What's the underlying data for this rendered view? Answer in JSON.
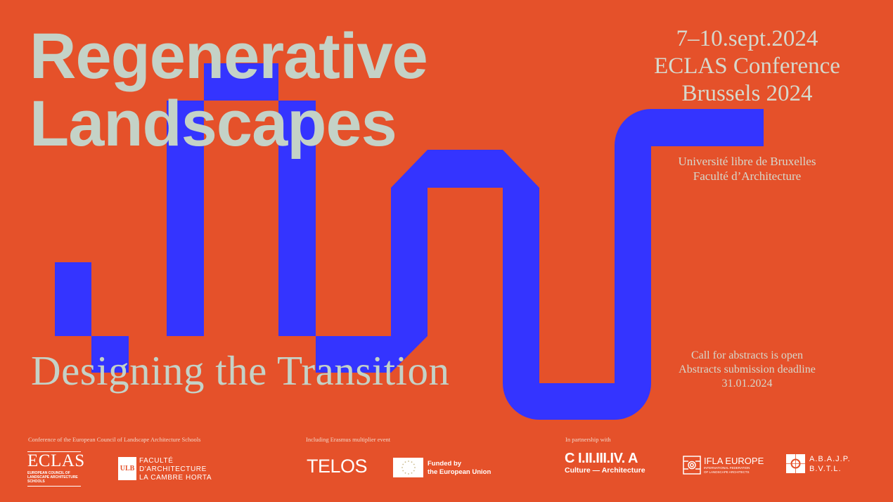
{
  "colors": {
    "background": "#E5512A",
    "shape": "#3434FF",
    "title": "#C4D2C7",
    "text": "#D6D8CC"
  },
  "title": {
    "line1": "Regenerative",
    "line2": "Landscapes"
  },
  "subtitle": "Designing the Transition",
  "event": {
    "dates": "7–10.sept.2024",
    "name": "ECLAS Conference",
    "place": "Brussels 2024"
  },
  "host": {
    "line1": "Université libre de Bruxelles",
    "line2": "Faculté d’Architecture"
  },
  "call": {
    "line1": "Call for abstracts is open",
    "line2": "Abstracts submission deadline",
    "line3": "31.01.2024"
  },
  "footer": {
    "caption_conference": "Conference of the European Council of Landscape Architecture Schools",
    "caption_erasmus": "Including Erasmus multiplier event",
    "caption_partnership": "In partnership with",
    "eclas": {
      "name": "ECLAS",
      "sub1": "EUROPEAN COUNCIL OF",
      "sub2": "LANDSCAPE ARCHITECTURE",
      "sub3": "SCHOOLS"
    },
    "ulb": {
      "mark": "ULB",
      "line1": "FACULTÉ",
      "line2": "D'ARCHITECTURE",
      "line3": "LA CAMBRE HORTA"
    },
    "telos": "TELOS",
    "eu": {
      "line1": "Funded by",
      "line2": "the European Union"
    },
    "civa": {
      "line1": "C I.II.III.IV. A",
      "line2": "Culture — Architecture"
    },
    "ifla": {
      "name": "IFLA EUROPE",
      "sub1": "INTERNATIONAL FEDERATION",
      "sub2": "OF LANDSCAPE ARCHITECTS"
    },
    "abajp": {
      "line1": "A.B.A.J.P.",
      "line2": "B.V.T.L."
    }
  }
}
